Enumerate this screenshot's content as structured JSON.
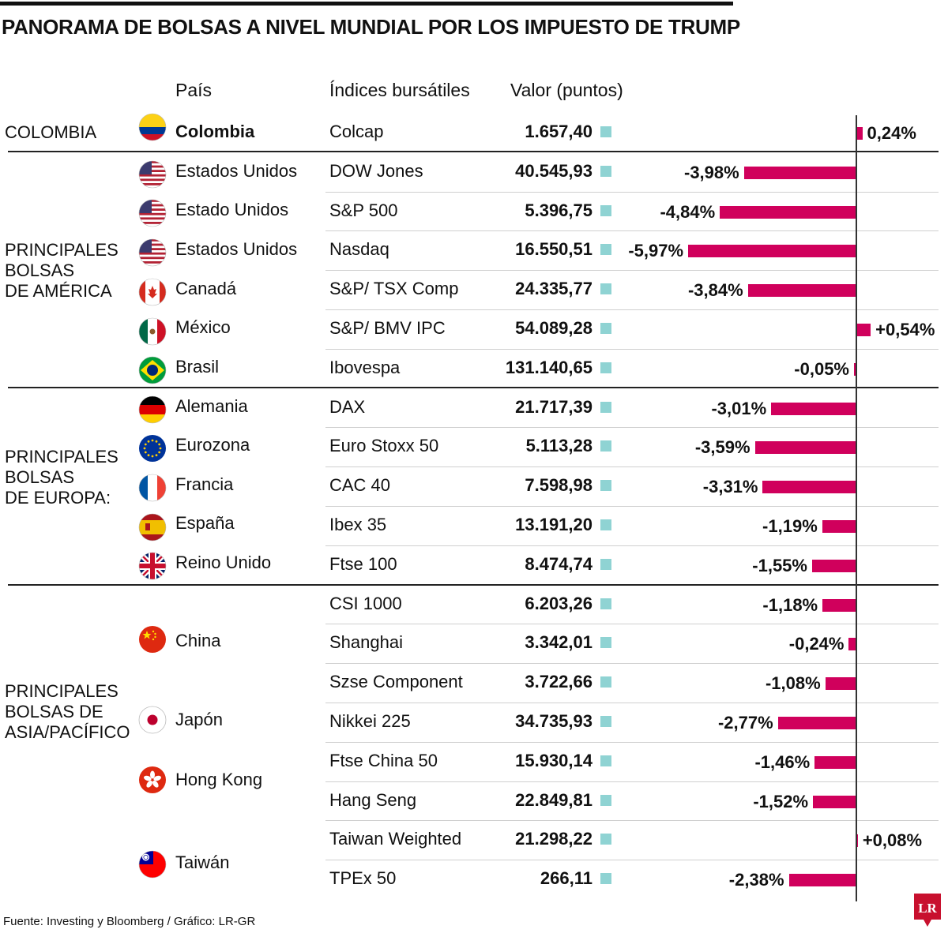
{
  "title": "PANORAMA DE BOLSAS A NIVEL MUNDIAL POR LOS IMPUESTO DE TRUMP",
  "headers": {
    "country": "País",
    "index": "Índices bursátiles",
    "value": "Valor (puntos)"
  },
  "regions": {
    "colombia": "COLOMBIA",
    "america": [
      "PRINCIPALES",
      "BOLSAS",
      "DE AMÉRICA"
    ],
    "europa": [
      "PRINCIPALES",
      "BOLSAS",
      "DE EUROPA:"
    ],
    "asia": [
      "PRINCIPALES",
      "BOLSAS DE",
      "ASIA/PACÍFICO"
    ]
  },
  "countries": {
    "colombia": "Colombia",
    "eeuu1": "Estados Unidos",
    "eeuu2": "Estado Unidos",
    "eeuu3": "Estados Unidos",
    "canada": "Canadá",
    "mexico": "México",
    "brasil": "Brasil",
    "alemania": "Alemania",
    "eurozona": "Eurozona",
    "francia": "Francia",
    "espana": "España",
    "reino_unido": "Reino Unido",
    "china": "China",
    "japon": "Japón",
    "hong_kong": "Hong Kong",
    "taiwan": "Taiwán"
  },
  "flags": [
    "colombia-flag-icon",
    "usa-flag-icon",
    "usa-flag-icon",
    "usa-flag-icon",
    "canada-flag-icon",
    "mexico-flag-icon",
    "brazil-flag-icon",
    "germany-flag-icon",
    "eu-flag-icon",
    "france-flag-icon",
    "spain-flag-icon",
    "uk-flag-icon",
    "china-flag-icon",
    "japan-flag-icon",
    "hong-kong-flag-icon",
    "taiwan-flag-icon"
  ],
  "colors": {
    "bar": "#d0005c",
    "marker": "#8fd3d3",
    "axis": "#333333"
  },
  "chart_data": {
    "type": "bar",
    "orientation": "horizontal",
    "title": "PANORAMA DE BOLSAS A NIVEL MUNDIAL POR LOS IMPUESTO DE TRUMP",
    "unit": "%",
    "rows": [
      {
        "index": "Colcap",
        "value": "1.657,40",
        "change": 0.24,
        "label": "0,24%"
      },
      {
        "index": "DOW Jones",
        "value": "40.545,93",
        "change": -3.98,
        "label": "-3,98%"
      },
      {
        "index": "S&P 500",
        "value": "5.396,75",
        "change": -4.84,
        "label": "-4,84%"
      },
      {
        "index": "Nasdaq",
        "value": "16.550,51",
        "change": -5.97,
        "label": "-5,97%"
      },
      {
        "index": "S&P/ TSX Comp",
        "value": "24.335,77",
        "change": -3.84,
        "label": "-3,84%"
      },
      {
        "index": "S&P/ BMV IPC",
        "value": "54.089,28",
        "change": 0.54,
        "label": "+0,54%"
      },
      {
        "index": "Ibovespa",
        "value": "131.140,65",
        "change": -0.05,
        "label": "-0,05%"
      },
      {
        "index": "DAX",
        "value": "21.717,39",
        "change": -3.01,
        "label": "-3,01%"
      },
      {
        "index": "Euro Stoxx 50",
        "value": "5.113,28",
        "change": -3.59,
        "label": "-3,59%"
      },
      {
        "index": "CAC 40",
        "value": "7.598,98",
        "change": -3.31,
        "label": "-3,31%"
      },
      {
        "index": "Ibex 35",
        "value": "13.191,20",
        "change": -1.19,
        "label": "-1,19%"
      },
      {
        "index": "Ftse 100",
        "value": "8.474,74",
        "change": -1.55,
        "label": "-1,55%"
      },
      {
        "index": "CSI 1000",
        "value": "6.203,26",
        "change": -1.18,
        "label": "-1,18%"
      },
      {
        "index": "Shanghai",
        "value": "3.342,01",
        "change": -0.24,
        "label": "-0,24%"
      },
      {
        "index": "Szse Component",
        "value": "3.722,66",
        "change": -1.08,
        "label": "-1,08%"
      },
      {
        "index": "Nikkei 225",
        "value": "34.735,93",
        "change": -2.77,
        "label": "-2,77%"
      },
      {
        "index": "Ftse China 50",
        "value": "15.930,14",
        "change": -1.46,
        "label": "-1,46%"
      },
      {
        "index": "Hang Seng",
        "value": "22.849,81",
        "change": -1.52,
        "label": "-1,52%"
      },
      {
        "index": "Taiwan Weighted",
        "value": "21.298,22",
        "change": 0.08,
        "label": "+0,08%"
      },
      {
        "index": "TPEx 50",
        "value": "266,11",
        "change": -2.38,
        "label": "-2,38%"
      }
    ]
  },
  "footer": "Fuente: Investing y Bloomberg / Gráfico: LR-GR",
  "logo": "LR"
}
